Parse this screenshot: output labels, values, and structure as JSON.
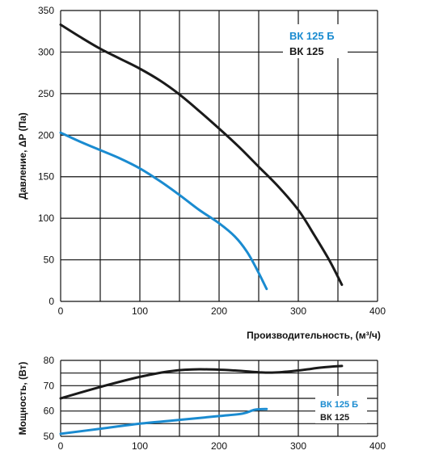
{
  "chart_data": [
    {
      "type": "line",
      "ylabel": "Давление, ΔP (Па)",
      "xlabel": "Производительность, (м³/ч)",
      "xlim": [
        0,
        400
      ],
      "ylim": [
        0,
        350
      ],
      "x_ticks": [
        "0",
        "100",
        "200",
        "300",
        "400"
      ],
      "y_ticks": [
        "0",
        "50",
        "100",
        "150",
        "200",
        "250",
        "300",
        "350"
      ],
      "grid": true,
      "legend_position": "top-right",
      "series": [
        {
          "name": "ВК 125 Б",
          "color": "#1a8bd0",
          "points": [
            [
              0,
              203
            ],
            [
              25,
              192
            ],
            [
              50,
              182
            ],
            [
              75,
              172
            ],
            [
              100,
              160
            ],
            [
              125,
              145
            ],
            [
              150,
              128
            ],
            [
              175,
              110
            ],
            [
              200,
              94
            ],
            [
              220,
              78
            ],
            [
              235,
              60
            ],
            [
              248,
              38
            ],
            [
              260,
              15
            ]
          ]
        },
        {
          "name": "ВК 125",
          "color": "#1a1a1a",
          "points": [
            [
              0,
              333
            ],
            [
              25,
              318
            ],
            [
              50,
              304
            ],
            [
              75,
              292
            ],
            [
              100,
              280
            ],
            [
              125,
              266
            ],
            [
              150,
              249
            ],
            [
              175,
              229
            ],
            [
              200,
              208
            ],
            [
              225,
              186
            ],
            [
              250,
              162
            ],
            [
              275,
              138
            ],
            [
              300,
              110
            ],
            [
              320,
              80
            ],
            [
              340,
              48
            ],
            [
              355,
              20
            ]
          ]
        }
      ]
    },
    {
      "type": "line",
      "ylabel": "Мощность, (Вт)",
      "xlim": [
        0,
        400
      ],
      "ylim": [
        50,
        80
      ],
      "x_ticks": [
        "0",
        "100",
        "200",
        "300",
        "400"
      ],
      "y_ticks": [
        "50",
        "60",
        "70",
        "80"
      ],
      "grid": true,
      "legend_position": "bottom-right",
      "series": [
        {
          "name": "ВК 125 Б",
          "color": "#1a8bd0",
          "points": [
            [
              0,
              51
            ],
            [
              50,
              53
            ],
            [
              100,
              55
            ],
            [
              150,
              56.5
            ],
            [
              200,
              58
            ],
            [
              230,
              59
            ],
            [
              245,
              60.5
            ],
            [
              260,
              60.8
            ]
          ]
        },
        {
          "name": "ВК 125",
          "color": "#1a1a1a",
          "points": [
            [
              0,
              65
            ],
            [
              50,
              69.5
            ],
            [
              100,
              73.5
            ],
            [
              140,
              75.8
            ],
            [
              175,
              76.5
            ],
            [
              220,
              76
            ],
            [
              250,
              75.3
            ],
            [
              270,
              75.2
            ],
            [
              300,
              76
            ],
            [
              330,
              77.2
            ],
            [
              355,
              77.8
            ]
          ]
        }
      ]
    }
  ]
}
